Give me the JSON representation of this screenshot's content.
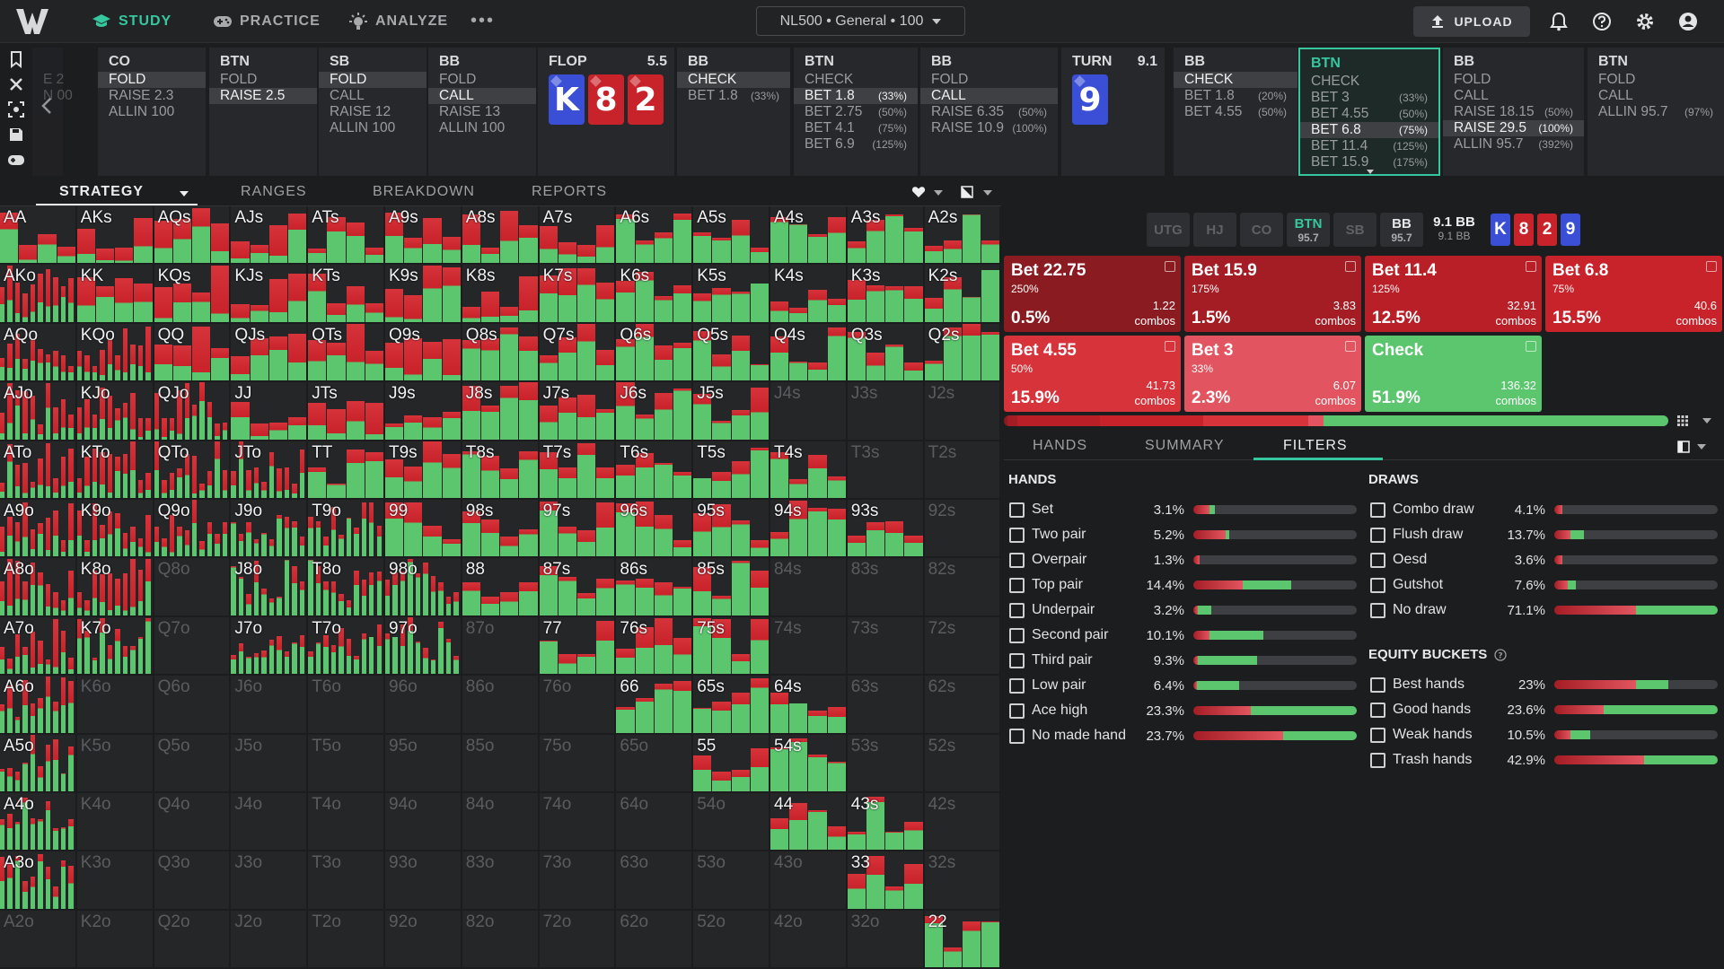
{
  "topnav": {
    "study": "STUDY",
    "practice": "PRACTICE",
    "analyze": "ANALYZE",
    "more": "•••",
    "game": "NL500 • General • 100",
    "upload": "UPLOAD"
  },
  "colors": {
    "accent": "#37c7a0",
    "fold": "#2b79d4",
    "raise": "#c8222a",
    "bet_light": "#e25560",
    "check": "#5cc66f"
  },
  "action_columns": [
    {
      "id": "ghost",
      "title": "",
      "opts": [
        [
          "E 2",
          ""
        ],
        [
          "N 00",
          ""
        ]
      ]
    },
    {
      "id": "co",
      "title": "CO",
      "opts": [
        [
          "FOLD",
          "",
          true
        ],
        [
          "RAISE 2.3",
          ""
        ],
        [
          "ALLIN 100",
          ""
        ]
      ]
    },
    {
      "id": "btn1",
      "title": "BTN",
      "opts": [
        [
          "FOLD",
          ""
        ],
        [
          "RAISE 2.5",
          "",
          true
        ]
      ]
    },
    {
      "id": "sb",
      "title": "SB",
      "opts": [
        [
          "FOLD",
          "",
          true
        ],
        [
          "CALL",
          ""
        ],
        [
          "RAISE 12",
          ""
        ],
        [
          "ALLIN 100",
          ""
        ]
      ]
    },
    {
      "id": "bb1",
      "title": "BB",
      "opts": [
        [
          "FOLD",
          ""
        ],
        [
          "CALL",
          "",
          true
        ],
        [
          "RAISE 13",
          ""
        ],
        [
          "ALLIN 100",
          ""
        ]
      ]
    },
    {
      "id": "bb2",
      "title": "BB",
      "opts": [
        [
          "CHECK",
          "",
          true
        ],
        [
          "BET 1.8",
          "(33%)"
        ]
      ]
    },
    {
      "id": "btn2",
      "title": "BTN",
      "opts": [
        [
          "CHECK",
          ""
        ],
        [
          "BET 1.8",
          "(33%)",
          true
        ],
        [
          "BET 2.75",
          "(50%)"
        ],
        [
          "BET 4.1",
          "(75%)"
        ],
        [
          "BET 6.9",
          "(125%)"
        ]
      ]
    },
    {
      "id": "bb3",
      "title": "BB",
      "opts": [
        [
          "FOLD",
          ""
        ],
        [
          "CALL",
          "",
          true
        ],
        [
          "RAISE 6.35",
          "(50%)"
        ],
        [
          "RAISE 10.9",
          "(100%)"
        ]
      ]
    },
    {
      "id": "bb4",
      "title": "BB",
      "opts": [
        [
          "CHECK",
          "",
          true
        ],
        [
          "BET 1.8",
          "(20%)"
        ],
        [
          "BET 4.55",
          "(50%)"
        ]
      ]
    },
    {
      "id": "btn3",
      "title": "BTN",
      "opts": [
        [
          "CHECK",
          ""
        ],
        [
          "BET 3",
          "(33%)"
        ],
        [
          "BET 4.55",
          "(50%)"
        ],
        [
          "BET 6.8",
          "(75%)",
          true
        ],
        [
          "BET 11.4",
          "(125%)"
        ],
        [
          "BET 15.9",
          "(175%)"
        ]
      ]
    },
    {
      "id": "bb5",
      "title": "BB",
      "opts": [
        [
          "FOLD",
          ""
        ],
        [
          "CALL",
          ""
        ],
        [
          "RAISE 18.15",
          "(50%)"
        ],
        [
          "RAISE 29.5",
          "(100%)",
          true
        ],
        [
          "ALLIN 95.7",
          "(392%)"
        ]
      ]
    },
    {
      "id": "btn4",
      "title": "BTN",
      "opts": [
        [
          "FOLD",
          ""
        ],
        [
          "CALL",
          ""
        ],
        [
          "ALLIN 95.7",
          "(97%)"
        ]
      ]
    }
  ],
  "flop": {
    "label": "FLOP",
    "pot": "5.5",
    "cards": [
      {
        "r": "K",
        "c": "b"
      },
      {
        "r": "8",
        "c": "r"
      },
      {
        "r": "2",
        "c": "r"
      }
    ]
  },
  "turn": {
    "label": "TURN",
    "pot": "9.1",
    "cards": [
      {
        "r": "9",
        "c": "b"
      }
    ]
  },
  "tabs": [
    "STRATEGY",
    "RANGES",
    "BREAKDOWN",
    "REPORTS"
  ],
  "ranks": [
    "A",
    "K",
    "Q",
    "J",
    "T",
    "9",
    "8",
    "7",
    "6",
    "5",
    "4",
    "3",
    "2"
  ],
  "seats": [
    [
      "UTG",
      ""
    ],
    [
      "HJ",
      ""
    ],
    [
      "CO",
      ""
    ],
    [
      "BTN",
      "95.7"
    ],
    [
      "SB",
      ""
    ],
    [
      "BB",
      "95.7"
    ]
  ],
  "pot_info": {
    "main": "9.1 BB",
    "sub": "9.1 BB"
  },
  "board_mini": [
    {
      "r": "K",
      "c": "b"
    },
    {
      "r": "8",
      "c": "r"
    },
    {
      "r": "2",
      "c": "r"
    },
    {
      "r": "9",
      "c": "b"
    }
  ],
  "actions": [
    {
      "name": "Bet 22.75",
      "size": "250%",
      "pct": "0.5%",
      "combos": "1.22",
      "color": "#8a1b20"
    },
    {
      "name": "Bet 15.9",
      "size": "175%",
      "pct": "1.5%",
      "combos": "3.83",
      "color": "#a51d24"
    },
    {
      "name": "Bet 11.4",
      "size": "125%",
      "pct": "12.5%",
      "combos": "32.91",
      "color": "#b91f27"
    },
    {
      "name": "Bet 6.8",
      "size": "75%",
      "pct": "15.5%",
      "combos": "40.6",
      "color": "#c8222a"
    },
    {
      "name": "Bet 4.55",
      "size": "50%",
      "pct": "15.9%",
      "combos": "41.73",
      "color": "#d6333b"
    },
    {
      "name": "Bet 3",
      "size": "33%",
      "pct": "2.3%",
      "combos": "6.07",
      "color": "#e25560"
    },
    {
      "name": "Check",
      "size": "",
      "pct": "51.9%",
      "combos": "136.32",
      "color": "#5cc66f"
    }
  ],
  "combos_word": "combos",
  "right_tabs": [
    "HANDS",
    "SUMMARY",
    "FILTERS"
  ],
  "hands_title": "HANDS",
  "draws_title": "DRAWS",
  "equity_title": "EQUITY BUCKETS",
  "hands": [
    [
      "Set",
      "3.1%",
      0.1,
      0.03
    ],
    [
      "Two pair",
      "5.2%",
      0.2,
      0.02
    ],
    [
      "Overpair",
      "1.3%",
      0.04,
      0.0
    ],
    [
      "Top pair",
      "14.4%",
      0.3,
      0.3
    ],
    [
      "Underpair",
      "3.2%",
      0.03,
      0.08
    ],
    [
      "Second pair",
      "10.1%",
      0.1,
      0.33
    ],
    [
      "Third pair",
      "9.3%",
      0.03,
      0.36
    ],
    [
      "Low pair",
      "6.4%",
      0.02,
      0.26
    ],
    [
      "Ace high",
      "23.3%",
      0.35,
      0.65
    ],
    [
      "No made hand",
      "23.7%",
      0.55,
      0.45
    ]
  ],
  "draws": [
    [
      "Combo draw",
      "4.1%",
      0.05,
      0.0
    ],
    [
      "Flush draw",
      "13.7%",
      0.1,
      0.08
    ],
    [
      "Oesd",
      "3.6%",
      0.05,
      0.0
    ],
    [
      "Gutshot",
      "7.6%",
      0.08,
      0.05
    ],
    [
      "No draw",
      "71.1%",
      0.5,
      0.5
    ]
  ],
  "equity": [
    [
      "Best hands",
      "23%",
      0.5,
      0.2
    ],
    [
      "Good hands",
      "23.6%",
      0.3,
      0.7
    ],
    [
      "Weak hands",
      "10.5%",
      0.1,
      0.12
    ],
    [
      "Trash hands",
      "42.9%",
      0.55,
      0.45
    ]
  ]
}
